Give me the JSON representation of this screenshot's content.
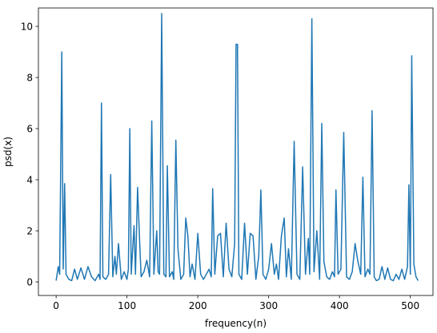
{
  "chart_data": {
    "type": "line",
    "xlabel": "frequency(n)",
    "ylabel": "psd(x)",
    "x": [
      0,
      3,
      5,
      8,
      10,
      12,
      14,
      18,
      22,
      26,
      30,
      35,
      40,
      45,
      50,
      55,
      60,
      62,
      64,
      66,
      70,
      74,
      77,
      80,
      83,
      85,
      88,
      92,
      96,
      100,
      102,
      104,
      106,
      110,
      112,
      115,
      118,
      120,
      124,
      128,
      132,
      135,
      138,
      142,
      144,
      146,
      149,
      152,
      155,
      157,
      160,
      164,
      166,
      169,
      172,
      176,
      180,
      183,
      186,
      189,
      192,
      196,
      200,
      204,
      208,
      212,
      216,
      219,
      221,
      224,
      228,
      232,
      236,
      240,
      244,
      248,
      252,
      254,
      256,
      258,
      262,
      266,
      270,
      274,
      278,
      282,
      286,
      289,
      292,
      296,
      300,
      304,
      308,
      311,
      314,
      318,
      322,
      325,
      328,
      332,
      336,
      340,
      344,
      348,
      352,
      356,
      358,
      361,
      364,
      368,
      372,
      375,
      378,
      382,
      386,
      390,
      393,
      395,
      398,
      402,
      406,
      410,
      414,
      418,
      422,
      426,
      430,
      433,
      436,
      440,
      443,
      446,
      449,
      452,
      456,
      460,
      464,
      468,
      472,
      476,
      480,
      484,
      488,
      492,
      496,
      498,
      500,
      502,
      505,
      508,
      511
    ],
    "series": [
      {
        "color": "#1f77b4",
        "values": [
          0.05,
          0.6,
          0.3,
          9.0,
          0.5,
          3.85,
          0.3,
          0.1,
          0.05,
          0.5,
          0.1,
          0.55,
          0.1,
          0.6,
          0.2,
          0.05,
          0.3,
          0.1,
          7.0,
          0.2,
          0.1,
          0.3,
          4.2,
          0.2,
          1.0,
          0.3,
          1.5,
          0.1,
          0.4,
          0.1,
          0.5,
          6.0,
          0.3,
          2.2,
          0.3,
          3.7,
          1.5,
          0.2,
          0.4,
          0.85,
          0.2,
          6.3,
          0.3,
          2.0,
          0.4,
          0.3,
          10.5,
          0.3,
          0.2,
          4.55,
          0.2,
          0.4,
          0.1,
          5.55,
          1.3,
          0.1,
          0.3,
          2.5,
          1.8,
          0.2,
          0.7,
          0.1,
          1.9,
          0.3,
          0.1,
          0.3,
          0.5,
          0.2,
          3.65,
          0.3,
          1.8,
          1.9,
          0.2,
          2.3,
          0.5,
          0.2,
          1.5,
          9.3,
          9.3,
          0.3,
          0.1,
          2.3,
          0.3,
          1.9,
          1.8,
          0.1,
          1.0,
          3.6,
          0.3,
          0.1,
          0.5,
          1.5,
          0.3,
          0.7,
          0.1,
          1.8,
          2.5,
          0.2,
          1.3,
          0.1,
          5.5,
          0.3,
          0.1,
          4.5,
          0.3,
          1.7,
          0.3,
          10.3,
          0.4,
          2.0,
          0.1,
          6.2,
          0.8,
          0.2,
          0.1,
          0.4,
          0.2,
          3.6,
          0.3,
          0.5,
          5.85,
          0.2,
          0.1,
          0.4,
          1.5,
          0.8,
          0.3,
          4.1,
          0.2,
          0.5,
          0.3,
          6.7,
          0.2,
          0.05,
          0.1,
          0.6,
          0.1,
          0.55,
          0.1,
          0.05,
          0.3,
          0.1,
          0.5,
          0.1,
          0.6,
          3.8,
          0.3,
          8.85,
          0.7,
          0.2,
          0.05
        ]
      }
    ],
    "xlim": [
      -25,
      532
    ],
    "xticks": [
      0,
      100,
      200,
      300,
      400,
      500
    ],
    "ylim": [
      -0.53,
      10.72
    ],
    "yticks": [
      0,
      2,
      4,
      6,
      8,
      10
    ]
  }
}
